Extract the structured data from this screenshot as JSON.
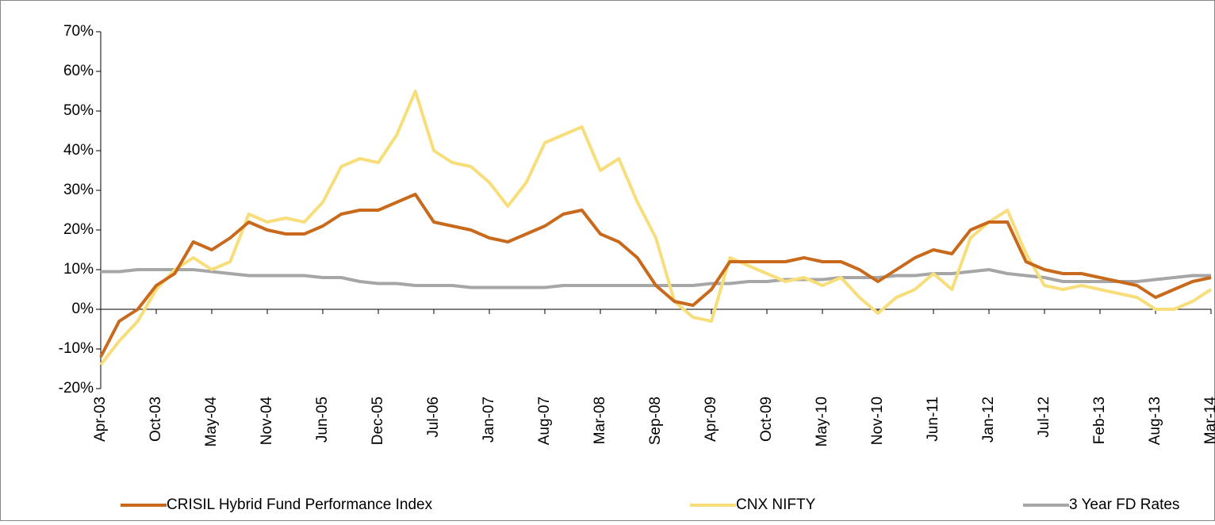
{
  "chart_data": {
    "type": "line",
    "categories": [
      "Apr-03",
      null,
      null,
      "Oct-03",
      null,
      null,
      "May-04",
      null,
      null,
      "Nov-04",
      null,
      null,
      "Jun-05",
      null,
      null,
      "Dec-05",
      null,
      null,
      "Jul-06",
      null,
      null,
      "Jan-07",
      null,
      null,
      "Aug-07",
      null,
      null,
      "Mar-08",
      null,
      null,
      "Sep-08",
      null,
      null,
      "Apr-09",
      null,
      null,
      "Oct-09",
      null,
      null,
      "May-10",
      null,
      null,
      "Nov-10",
      null,
      null,
      "Jun-11",
      null,
      null,
      "Jan-12",
      null,
      null,
      "Jul-12",
      null,
      null,
      "Feb-13",
      null,
      null,
      "Aug-13",
      null,
      null,
      "Mar-14"
    ],
    "series": [
      {
        "name": "CRISIL Hybrid Fund Performance Index",
        "color": "#c8691c",
        "values": [
          -12,
          -3,
          0,
          6,
          9,
          17,
          15,
          18,
          22,
          20,
          19,
          19,
          21,
          24,
          25,
          25,
          27,
          29,
          22,
          21,
          20,
          18,
          17,
          19,
          21,
          24,
          25,
          19,
          17,
          13,
          6,
          2,
          1,
          5,
          12,
          12,
          12,
          12,
          13,
          12,
          12,
          10,
          7,
          10,
          13,
          15,
          14,
          20,
          22,
          22,
          12,
          10,
          9,
          9,
          8,
          7,
          6,
          3,
          5,
          7,
          8
        ]
      },
      {
        "name": "CNX NIFTY",
        "color": "#f7de7a",
        "values": [
          -14,
          -8,
          -3,
          5,
          10,
          13,
          10,
          12,
          24,
          22,
          23,
          22,
          27,
          36,
          38,
          37,
          44,
          55,
          40,
          37,
          36,
          32,
          26,
          32,
          42,
          44,
          46,
          35,
          38,
          27,
          18,
          2,
          -2,
          -3,
          13,
          11,
          9,
          7,
          8,
          6,
          8,
          3,
          -1,
          3,
          5,
          9,
          5,
          18,
          22,
          25,
          14,
          6,
          5,
          6,
          5,
          4,
          3,
          0,
          0,
          2,
          5
        ]
      },
      {
        "name": "3 Year FD Rates",
        "color": "#a6a6a6",
        "values": [
          9.5,
          9.5,
          10,
          10,
          10,
          10,
          9.5,
          9,
          8.5,
          8.5,
          8.5,
          8.5,
          8,
          8,
          7,
          6.5,
          6.5,
          6,
          6,
          6,
          5.5,
          5.5,
          5.5,
          5.5,
          5.5,
          6,
          6,
          6,
          6,
          6,
          6,
          6,
          6,
          6.5,
          6.5,
          7,
          7,
          7.5,
          7.5,
          7.5,
          8,
          8,
          8,
          8.5,
          8.5,
          9,
          9,
          9.5,
          10,
          9,
          8.5,
          8,
          7,
          7,
          7,
          7,
          7,
          7.5,
          8,
          8.5,
          8.5
        ]
      }
    ],
    "ylim": [
      -20,
      70
    ],
    "yticks": [
      {
        "value": -20,
        "label": "-20%"
      },
      {
        "value": -10,
        "label": "-10%"
      },
      {
        "value": 0,
        "label": "0%"
      },
      {
        "value": 10,
        "label": "10%"
      },
      {
        "value": 20,
        "label": "20%"
      },
      {
        "value": 30,
        "label": "30%"
      },
      {
        "value": 40,
        "label": "40%"
      },
      {
        "value": 50,
        "label": "50%"
      },
      {
        "value": 60,
        "label": "60%"
      },
      {
        "value": 70,
        "label": "70%"
      }
    ],
    "grid": false,
    "legend": "bottom"
  }
}
